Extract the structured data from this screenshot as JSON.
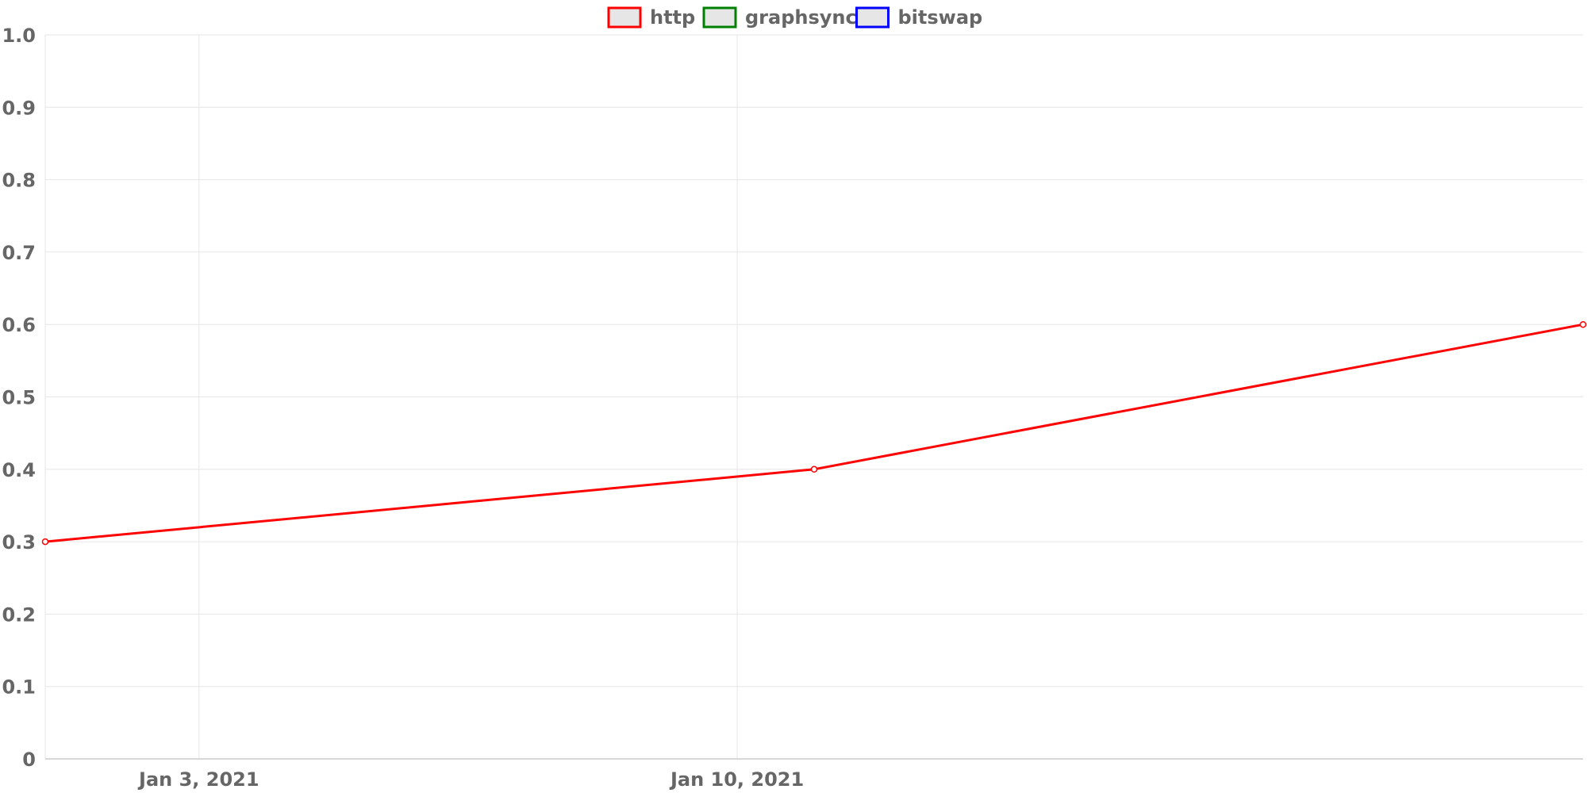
{
  "chart_data": {
    "type": "line",
    "title": "",
    "xlabel": "",
    "ylabel": "",
    "x_axis_type": "time",
    "xlim": [
      "2021-01-01",
      "2021-01-21"
    ],
    "ylim": [
      0,
      1.0
    ],
    "y_ticks": [
      0,
      0.1,
      0.2,
      0.3,
      0.4,
      0.5,
      0.6,
      0.7,
      0.8,
      0.9,
      1.0
    ],
    "y_tick_labels": [
      "0",
      "0.1",
      "0.2",
      "0.3",
      "0.4",
      "0.5",
      "0.6",
      "0.7",
      "0.8",
      "0.9",
      "1.0"
    ],
    "x_ticks": [
      "2021-01-03",
      "2021-01-10"
    ],
    "x_tick_labels": [
      "Jan 3, 2021",
      "Jan 10, 2021"
    ],
    "grid": true,
    "legend_position": "top",
    "series": [
      {
        "name": "http",
        "color": "#ff0000",
        "points": [
          {
            "x": "2021-01-01",
            "y": 0.3
          },
          {
            "x": "2021-01-11",
            "y": 0.4
          },
          {
            "x": "2021-01-21",
            "y": 0.6
          }
        ]
      },
      {
        "name": "graphsync",
        "color": "#008000",
        "points": []
      },
      {
        "name": "bitswap",
        "color": "#0000ff",
        "points": []
      }
    ]
  }
}
